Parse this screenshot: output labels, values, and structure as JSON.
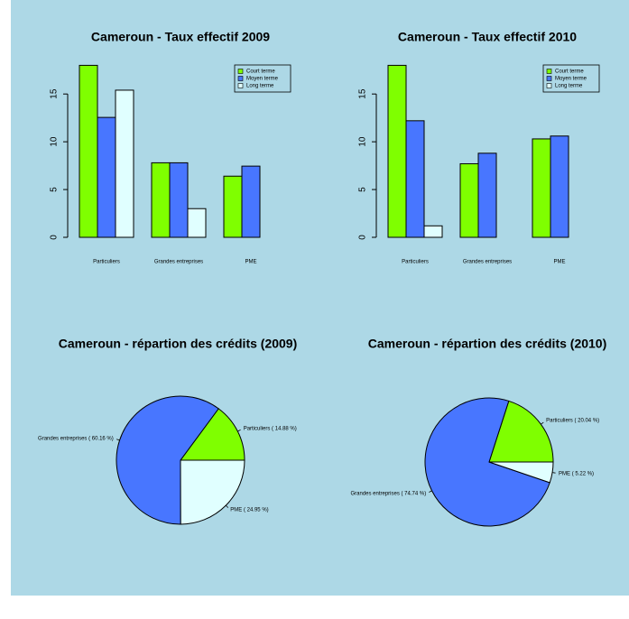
{
  "chart_data": [
    {
      "type": "bar",
      "title": "Cameroun - Taux effectif 2009",
      "categories": [
        "Particuliers",
        "Grandes entreprises",
        "PME"
      ],
      "series": [
        {
          "name": "Court terme",
          "color": "#7fff00",
          "values": [
            18.0,
            7.8,
            6.4
          ]
        },
        {
          "name": "Moyen terme",
          "color": "#4876ff",
          "values": [
            12.55,
            7.8,
            7.45
          ]
        },
        {
          "name": "Long terme",
          "color": "#e0ffff",
          "values": [
            15.4,
            3.0,
            null
          ]
        }
      ],
      "ylim": [
        0,
        18.7
      ],
      "yticks": [
        0,
        5,
        10,
        15
      ],
      "legend": "topright"
    },
    {
      "type": "bar",
      "title": "Cameroun - Taux effectif 2010",
      "categories": [
        "Particuliers",
        "Grandes entreprises",
        "PME"
      ],
      "series": [
        {
          "name": "Court terme",
          "color": "#7fff00",
          "values": [
            18.0,
            7.7,
            10.3
          ]
        },
        {
          "name": "Moyen terme",
          "color": "#4876ff",
          "values": [
            12.2,
            8.8,
            10.6
          ]
        },
        {
          "name": "Long terme",
          "color": "#e0ffff",
          "values": [
            1.2,
            null,
            null
          ]
        }
      ],
      "ylim": [
        0,
        18.7
      ],
      "yticks": [
        0,
        5,
        10,
        15
      ],
      "legend": "topright"
    },
    {
      "type": "pie",
      "title": "Cameroun - répartion des crédits (2009)",
      "categories": [
        "Particuliers ( 14.88 %)",
        "Grandes entreprises ( 60.16 %)",
        "PME ( 24.95 %)"
      ],
      "values": [
        14.88,
        60.16,
        24.95
      ],
      "colors": [
        "#7fff00",
        "#4876ff",
        "#e0ffff"
      ]
    },
    {
      "type": "pie",
      "title": "Cameroun - répartion des crédits (2010)",
      "categories": [
        "Particuliers ( 20.04 %)",
        "Grandes entreprises ( 74.74 %)",
        "PME ( 5.22 %)"
      ],
      "values": [
        20.04,
        74.74,
        5.22
      ],
      "colors": [
        "#7fff00",
        "#4876ff",
        "#e0ffff"
      ]
    }
  ]
}
